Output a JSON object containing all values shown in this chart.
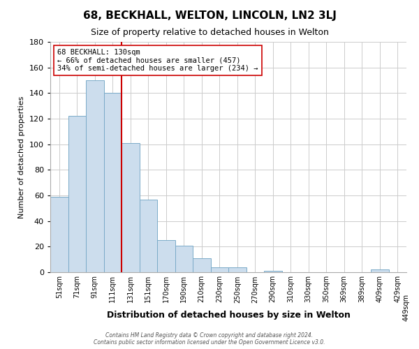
{
  "title": "68, BECKHALL, WELTON, LINCOLN, LN2 3LJ",
  "subtitle": "Size of property relative to detached houses in Welton",
  "xlabel": "Distribution of detached houses by size in Welton",
  "ylabel": "Number of detached properties",
  "bin_labels": [
    "51sqm",
    "71sqm",
    "91sqm",
    "111sqm",
    "131sqm",
    "151sqm",
    "170sqm",
    "190sqm",
    "210sqm",
    "230sqm",
    "250sqm",
    "270sqm",
    "290sqm",
    "310sqm",
    "330sqm",
    "350sqm",
    "369sqm",
    "389sqm",
    "409sqm",
    "429sqm",
    "449sqm"
  ],
  "bar_heights": [
    59,
    122,
    150,
    140,
    101,
    57,
    25,
    21,
    11,
    4,
    4,
    0,
    1,
    0,
    0,
    0,
    0,
    0,
    2,
    0
  ],
  "bar_color": "#ccdded",
  "bar_edge_color": "#7aaac8",
  "vline_x_label": "131sqm",
  "vline_color": "#cc0000",
  "annotation_title": "68 BECKHALL: 130sqm",
  "annotation_line1": "← 66% of detached houses are smaller (457)",
  "annotation_line2": "34% of semi-detached houses are larger (234) →",
  "annotation_box_color": "#ffffff",
  "annotation_box_edge": "#cc0000",
  "ylim": [
    0,
    180
  ],
  "yticks": [
    0,
    20,
    40,
    60,
    80,
    100,
    120,
    140,
    160,
    180
  ],
  "footer1": "Contains HM Land Registry data © Crown copyright and database right 2024.",
  "footer2": "Contains public sector information licensed under the Open Government Licence v3.0.",
  "background_color": "#ffffff",
  "plot_background": "#ffffff",
  "grid_color": "#cccccc"
}
